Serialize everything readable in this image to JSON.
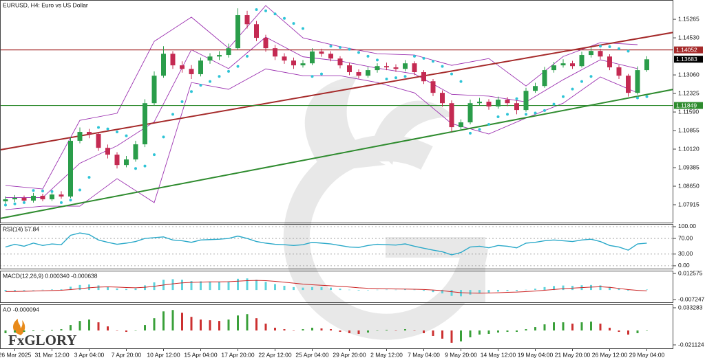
{
  "logo": "FxGLORY",
  "chart_data": [
    {
      "type": "candlestick",
      "title": "EURUSD, H4:  Euro vs US Dollar",
      "ylim": [
        1.0718,
        1.1603
      ],
      "yticks": [
        1.15265,
        {
          "value": 1.1453,
          "label": "1.14530"
        },
        {
          "value": 1.1306,
          "label": "1.13060"
        },
        1.12325,
        {
          "value": 1.1159,
          "label": "1.11590"
        },
        1.10855,
        {
          "value": 1.1012,
          "label": "1.10120"
        },
        1.09385,
        {
          "value": 1.0865,
          "label": "1.08650"
        },
        1.07915
      ],
      "bull_color": "#2a9d4a",
      "bear_color": "#c42a52",
      "candles": {
        "open": [
          1.0805,
          1.0813,
          1.0819,
          1.0808,
          1.0827,
          1.0813,
          1.0832,
          1.0824,
          1.1045,
          1.108,
          1.1072,
          1.1017,
          1.099,
          1.0949,
          1.0971,
          1.1031,
          1.1194,
          1.1303,
          1.139,
          1.1344,
          1.133,
          1.1309,
          1.1363,
          1.1379,
          1.1385,
          1.1412,
          1.1543,
          1.1507,
          1.1453,
          1.1412,
          1.1379,
          1.1363,
          1.1344,
          1.1352,
          1.1399,
          1.139,
          1.1371,
          1.1344,
          1.1317,
          1.1303,
          1.1325,
          1.1341,
          1.1336,
          1.133,
          1.1352,
          1.1317,
          1.1281,
          1.1235,
          1.1194,
          1.1099,
          1.1118,
          1.1194,
          1.12,
          1.1181,
          1.1208,
          1.1194,
          1.1167,
          1.1243,
          1.1262,
          1.1325,
          1.1344,
          1.1352,
          1.1341,
          1.1385,
          1.1401,
          1.1379,
          1.1336,
          1.1303,
          1.1235,
          1.1325
        ],
        "high": [
          1.0825,
          1.083,
          1.0828,
          1.0838,
          1.0835,
          1.0842,
          1.0845,
          1.106,
          1.1098,
          1.1092,
          1.108,
          1.103,
          1.1,
          1.0985,
          1.1045,
          1.121,
          1.132,
          1.142,
          1.14,
          1.136,
          1.1345,
          1.1375,
          1.1392,
          1.14,
          1.143,
          1.157,
          1.156,
          1.152,
          1.1465,
          1.1425,
          1.1392,
          1.1375,
          1.1365,
          1.1412,
          1.141,
          1.14,
          1.138,
          1.1355,
          1.1328,
          1.1338,
          1.1352,
          1.1355,
          1.1348,
          1.1365,
          1.136,
          1.1325,
          1.129,
          1.1245,
          1.1205,
          1.113,
          1.1208,
          1.1215,
          1.121,
          1.122,
          1.1218,
          1.1205,
          1.1255,
          1.1275,
          1.1338,
          1.1358,
          1.1368,
          1.1362,
          1.1398,
          1.1415,
          1.141,
          1.1388,
          1.1345,
          1.131,
          1.134,
          1.138
        ],
        "low": [
          1.0795,
          1.0802,
          1.0798,
          1.08,
          1.0805,
          1.0806,
          1.0815,
          1.0818,
          1.1035,
          1.1055,
          1.1005,
          1.0975,
          1.0935,
          1.094,
          1.0962,
          1.102,
          1.1185,
          1.1295,
          1.133,
          1.1315,
          1.129,
          1.13,
          1.135,
          1.1365,
          1.1375,
          1.1405,
          1.149,
          1.144,
          1.1398,
          1.1365,
          1.135,
          1.133,
          1.1335,
          1.1345,
          1.1378,
          1.136,
          1.1332,
          1.1305,
          1.1292,
          1.1295,
          1.1315,
          1.1325,
          1.1318,
          1.132,
          1.1305,
          1.127,
          1.1222,
          1.118,
          1.108,
          1.1085,
          1.111,
          1.1185,
          1.1168,
          1.1172,
          1.1182,
          1.115,
          1.116,
          1.1235,
          1.1255,
          1.1315,
          1.1335,
          1.133,
          1.1335,
          1.1375,
          1.1368,
          1.1325,
          1.129,
          1.122,
          1.1228,
          1.1318
        ],
        "close": [
          1.0813,
          1.0819,
          1.0808,
          1.0827,
          1.0813,
          1.0832,
          1.0824,
          1.1045,
          1.108,
          1.1072,
          1.1017,
          1.099,
          1.0949,
          1.0971,
          1.1031,
          1.1194,
          1.1303,
          1.139,
          1.1344,
          1.133,
          1.1309,
          1.1363,
          1.1379,
          1.1385,
          1.1412,
          1.1543,
          1.1507,
          1.1453,
          1.1412,
          1.1379,
          1.1363,
          1.1344,
          1.1352,
          1.1399,
          1.139,
          1.1371,
          1.1344,
          1.1317,
          1.1303,
          1.1325,
          1.1341,
          1.1336,
          1.133,
          1.1352,
          1.1317,
          1.1281,
          1.1235,
          1.1194,
          1.1099,
          1.1118,
          1.1194,
          1.12,
          1.1181,
          1.1208,
          1.1194,
          1.1167,
          1.1243,
          1.1262,
          1.1325,
          1.1344,
          1.1352,
          1.1341,
          1.1385,
          1.1401,
          1.1379,
          1.1336,
          1.1303,
          1.1235,
          1.1325,
          1.1368
        ]
      },
      "bands": {
        "color": "#9b30b0",
        "x": [
          0,
          4,
          8,
          12,
          16,
          20,
          24,
          28,
          32,
          36,
          40,
          44,
          48,
          52,
          56,
          60,
          64,
          68
        ],
        "upper": [
          1.0868,
          1.0854,
          1.1126,
          1.1154,
          1.1439,
          1.1535,
          1.1412,
          1.1581,
          1.1453,
          1.1418,
          1.139,
          1.1385,
          1.1344,
          1.1371,
          1.1262,
          1.1379,
          1.1434,
          1.1426
        ],
        "middle": [
          1.082,
          1.082,
          1.0956,
          1.1025,
          1.112,
          1.1406,
          1.1331,
          1.1456,
          1.1378,
          1.1361,
          1.1333,
          1.131,
          1.1229,
          1.1222,
          1.1199,
          1.1287,
          1.1366,
          1.1331
        ],
        "lower": [
          1.0772,
          1.0786,
          1.0786,
          1.0895,
          1.08,
          1.1276,
          1.1249,
          1.133,
          1.1303,
          1.1303,
          1.1276,
          1.1235,
          1.1113,
          1.1072,
          1.1135,
          1.1194,
          1.1298,
          1.1235
        ]
      },
      "sar": {
        "color": "#2ec4d6",
        "values": [
          1.079,
          1.0795,
          1.08,
          1.0848,
          1.0846,
          1.0844,
          1.08,
          1.081,
          1.085,
          1.09,
          1.1098,
          1.1092,
          1.108,
          1.1065,
          1.0935,
          1.0945,
          1.099,
          1.106,
          1.115,
          1.12,
          1.124,
          1.1265,
          1.128,
          1.13,
          1.132,
          1.134,
          1.138,
          1.1565,
          1.156,
          1.1548,
          1.153,
          1.151,
          1.149,
          1.13,
          1.131,
          1.142,
          1.1415,
          1.1408,
          1.1395,
          1.138,
          1.1365,
          1.129,
          1.1295,
          1.13,
          1.138,
          1.1372,
          1.136,
          1.134,
          1.131,
          1.128,
          1.1075,
          1.109,
          1.111,
          1.114,
          1.115,
          1.1212,
          1.115,
          1.1155,
          1.1165,
          1.119,
          1.122,
          1.125,
          1.128,
          1.13,
          1.142,
          1.1418,
          1.141,
          1.14,
          1.1215,
          1.122
        ]
      },
      "trendlines": [
        {
          "color": "#a52a2a",
          "x": [
            -0.6,
            71.9
          ],
          "y": [
            1.1009,
            1.1475
          ]
        },
        {
          "color": "#2e8b2e",
          "x": [
            -0.6,
            71.9
          ],
          "y": [
            1.0737,
            1.1249
          ]
        }
      ],
      "levels": [
        {
          "value": 1.14052,
          "color": "#a52a2a"
        },
        {
          "value": 1.11849,
          "color": "#2e8b2e"
        }
      ],
      "current": {
        "value": 1.13683,
        "color": "#000000"
      }
    },
    {
      "type": "line",
      "title": "RSI(14) 57.84",
      "color": "#2aa9c9",
      "grid": true,
      "ylim": [
        -9,
        107
      ],
      "yticks": [
        {
          "value": 100,
          "label": "100.00"
        },
        {
          "value": 70,
          "label": "70.00"
        },
        {
          "value": 30,
          "label": "30.00"
        },
        {
          "value": 0,
          "label": "0.00"
        }
      ],
      "values": [
        48,
        55,
        50,
        58,
        52,
        56,
        54,
        78,
        84,
        80,
        66,
        60,
        55,
        58,
        62,
        70,
        72,
        74,
        66,
        64,
        60,
        66,
        67,
        68,
        70,
        76,
        70,
        62,
        58,
        55,
        54,
        52,
        54,
        60,
        58,
        56,
        52,
        48,
        47,
        52,
        55,
        54,
        53,
        56,
        50,
        45,
        40,
        36,
        28,
        34,
        48,
        50,
        46,
        52,
        50,
        46,
        58,
        60,
        64,
        66,
        64,
        62,
        66,
        68,
        62,
        52,
        48,
        40,
        56,
        57.84
      ]
    },
    {
      "type": "bar",
      "title": "MACD(12,26,9) 0.000340 -0.000638",
      "color": "#5fd4dd",
      "ylim": [
        -0.009855,
        0.014662
      ],
      "yticks": [
        0.012575,
        -0.007247
      ],
      "values": [
        -0.001,
        -0.0008,
        -0.0005,
        0,
        0.0002,
        0.0004,
        0.0005,
        0.0025,
        0.0038,
        0.0042,
        0.0035,
        0.0025,
        0.0012,
        0.0008,
        0.0012,
        0.0035,
        0.0058,
        0.0078,
        0.0082,
        0.0078,
        0.0068,
        0.0066,
        0.0064,
        0.0062,
        0.0065,
        0.0085,
        0.0088,
        0.0078,
        0.0062,
        0.0045,
        0.0032,
        0.0022,
        0.0018,
        0.0022,
        0.0022,
        0.0018,
        0.001,
        0.0002,
        -0.0004,
        -0.0002,
        0.0002,
        0.0003,
        0.0002,
        0.0005,
        0.0002,
        -0.0006,
        -0.0016,
        -0.0026,
        -0.0045,
        -0.0048,
        -0.0035,
        -0.0025,
        -0.002,
        -0.0012,
        -0.0008,
        -0.0008,
        0.0002,
        0.001,
        0.0022,
        0.003,
        0.0034,
        0.0032,
        0.0036,
        0.0038,
        0.0035,
        0.0024,
        0.0012,
        -0.0005,
        -0.0002,
        0.00034
      ],
      "signal": {
        "color": "#cc2222",
        "values": [
          -0.0012,
          -0.0011,
          -0.001,
          -0.0008,
          -0.0006,
          -0.0004,
          -0.0002,
          0.0003,
          0.001,
          0.0017,
          0.0022,
          0.0024,
          0.0022,
          0.0019,
          0.0017,
          0.0021,
          0.0028,
          0.0038,
          0.0047,
          0.0054,
          0.0058,
          0.006,
          0.0062,
          0.0062,
          0.0063,
          0.0067,
          0.0071,
          0.0073,
          0.0071,
          0.0066,
          0.0059,
          0.0052,
          0.0045,
          0.004,
          0.0036,
          0.0032,
          0.0028,
          0.0023,
          0.0017,
          0.0013,
          0.0011,
          0.0009,
          0.0008,
          0.0007,
          0.0006,
          0.0004,
          0,
          -0.0005,
          -0.0013,
          -0.002,
          -0.0023,
          -0.0024,
          -0.0023,
          -0.0021,
          -0.0018,
          -0.0016,
          -0.0012,
          -0.0008,
          -0.0002,
          0.0004,
          0.001,
          0.0014,
          0.0018,
          0.0022,
          0.0025,
          0.002,
          0.0012,
          0.0003,
          -0.0003,
          -0.000638
        ]
      }
    },
    {
      "type": "bar",
      "title": "AO -0.000094",
      "up_color": "#3aa03a",
      "down_color": "#cc3030",
      "ylim": [
        -0.027169,
        0.038321
      ],
      "yticks": [
        0.033283,
        -0.021124
      ],
      "values": [
        -0.004,
        -0.003,
        -0.002,
        -0.001,
        0,
        0.001,
        0.002,
        0.008,
        0.014,
        0.016,
        0.012,
        0.006,
        0,
        -0.002,
        0,
        0.008,
        0.018,
        0.028,
        0.03,
        0.026,
        0.02,
        0.016,
        0.015,
        0.014,
        0.016,
        0.022,
        0.024,
        0.018,
        0.01,
        0.004,
        0.002,
        0,
        0.002,
        0.004,
        0.003,
        0.002,
        -0.002,
        -0.004,
        -0.005,
        -0.003,
        0,
        0.001,
        0,
        0.002,
        0,
        -0.004,
        -0.008,
        -0.012,
        -0.018,
        -0.016,
        -0.01,
        -0.006,
        -0.005,
        -0.003,
        -0.002,
        -0.002,
        0.002,
        0.005,
        0.009,
        0.012,
        0.012,
        0.01,
        0.012,
        0.013,
        0.01,
        0.004,
        -0.002,
        -0.006,
        -0.004,
        -9.4e-05
      ],
      "categories": [
        null,
        "26 Mar 2025",
        null,
        null,
        null,
        "31 Mar 12:00",
        null,
        null,
        null,
        "3 Apr 04:00",
        null,
        null,
        null,
        "7 Apr 20:00",
        null,
        null,
        null,
        "10 Apr 12:00",
        null,
        null,
        null,
        "15 Apr 04:00",
        null,
        null,
        null,
        "17 Apr 20:00",
        null,
        null,
        null,
        "22 Apr 12:00",
        null,
        null,
        null,
        "25 Apr 04:00",
        null,
        null,
        null,
        "29 Apr 20:00",
        null,
        null,
        null,
        "2 May 12:00",
        null,
        null,
        null,
        "7 May 04:00",
        null,
        null,
        null,
        "9 May 20:00",
        null,
        null,
        null,
        "14 May 12:00",
        null,
        null,
        null,
        "19 May 04:00",
        null,
        null,
        null,
        "21 May 20:00",
        null,
        null,
        null,
        "26 May 12:00",
        null,
        null,
        null,
        "29 May 04:00"
      ]
    }
  ]
}
